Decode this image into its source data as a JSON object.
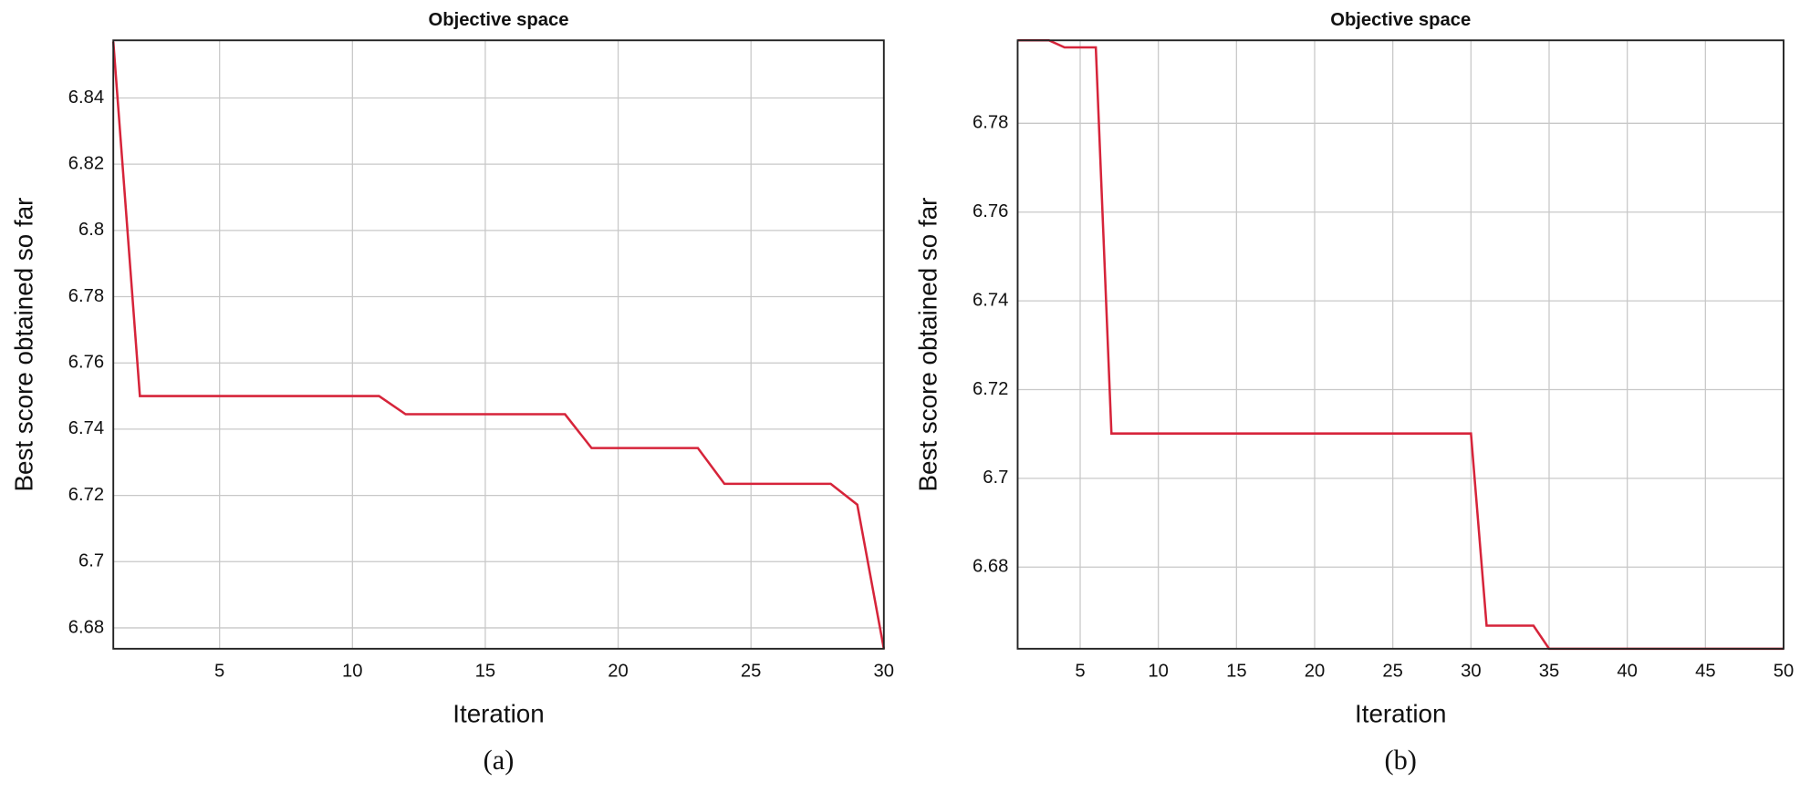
{
  "chart_data": [
    {
      "type": "line",
      "title": "Objective space",
      "x_label": "Iteration",
      "y_label": "Best score obtained so far",
      "caption": "(a)",
      "x": [
        1,
        2,
        3,
        4,
        5,
        6,
        7,
        8,
        9,
        10,
        11,
        12,
        13,
        14,
        15,
        16,
        17,
        18,
        19,
        20,
        21,
        22,
        23,
        24,
        25,
        26,
        27,
        28,
        29,
        30
      ],
      "series": [
        {
          "color": "#d6243a",
          "values": [
            6.857,
            6.75,
            6.75,
            6.75,
            6.75,
            6.75,
            6.75,
            6.75,
            6.75,
            6.75,
            6.75,
            6.7445,
            6.7445,
            6.7445,
            6.7445,
            6.7445,
            6.7445,
            6.7445,
            6.7343,
            6.7343,
            6.7343,
            6.7343,
            6.7343,
            6.7235,
            6.7235,
            6.7235,
            6.7235,
            6.7235,
            6.7172,
            6.6737
          ]
        }
      ],
      "xlim": [
        1,
        30
      ],
      "xticks": [
        5,
        10,
        15,
        20,
        25,
        30
      ],
      "ylim": [
        6.6737,
        6.8574
      ],
      "yticks": [
        6.68,
        6.7,
        6.72,
        6.74,
        6.76,
        6.78,
        6.8,
        6.82,
        6.84
      ],
      "grid": true
    },
    {
      "type": "line",
      "title": "Objective space",
      "x_label": "Iteration",
      "y_label": "Best score obtained so far",
      "caption": "(b)",
      "x": [
        1,
        2,
        3,
        4,
        5,
        6,
        7,
        8,
        9,
        10,
        11,
        12,
        13,
        14,
        15,
        16,
        17,
        18,
        19,
        20,
        21,
        22,
        23,
        24,
        25,
        26,
        27,
        28,
        29,
        30,
        31,
        32,
        33,
        34,
        35,
        36,
        37,
        38,
        39,
        40,
        41,
        42,
        43,
        44,
        45,
        46,
        47,
        48,
        49,
        50
      ],
      "series": [
        {
          "color": "#d6243a",
          "values": [
            6.7987,
            6.7987,
            6.7987,
            6.7971,
            6.7971,
            6.7971,
            6.7101,
            6.7101,
            6.7101,
            6.7101,
            6.7101,
            6.7101,
            6.7101,
            6.7101,
            6.7101,
            6.7101,
            6.7101,
            6.7101,
            6.7101,
            6.7101,
            6.7101,
            6.7101,
            6.7101,
            6.7101,
            6.7101,
            6.7101,
            6.7101,
            6.7101,
            6.7101,
            6.7101,
            6.6668,
            6.6668,
            6.6668,
            6.6668,
            6.6616,
            6.6616,
            6.6616,
            6.6616,
            6.6616,
            6.6616,
            6.6616,
            6.6616,
            6.6616,
            6.6616,
            6.6616,
            6.6616,
            6.6616,
            6.6616,
            6.6616,
            6.6616
          ]
        }
      ],
      "xlim": [
        1,
        50
      ],
      "xticks": [
        5,
        10,
        15,
        20,
        25,
        30,
        35,
        40,
        45,
        50
      ],
      "ylim": [
        6.6616,
        6.7987
      ],
      "yticks": [
        6.68,
        6.7,
        6.72,
        6.74,
        6.76,
        6.78
      ],
      "grid": true
    }
  ]
}
